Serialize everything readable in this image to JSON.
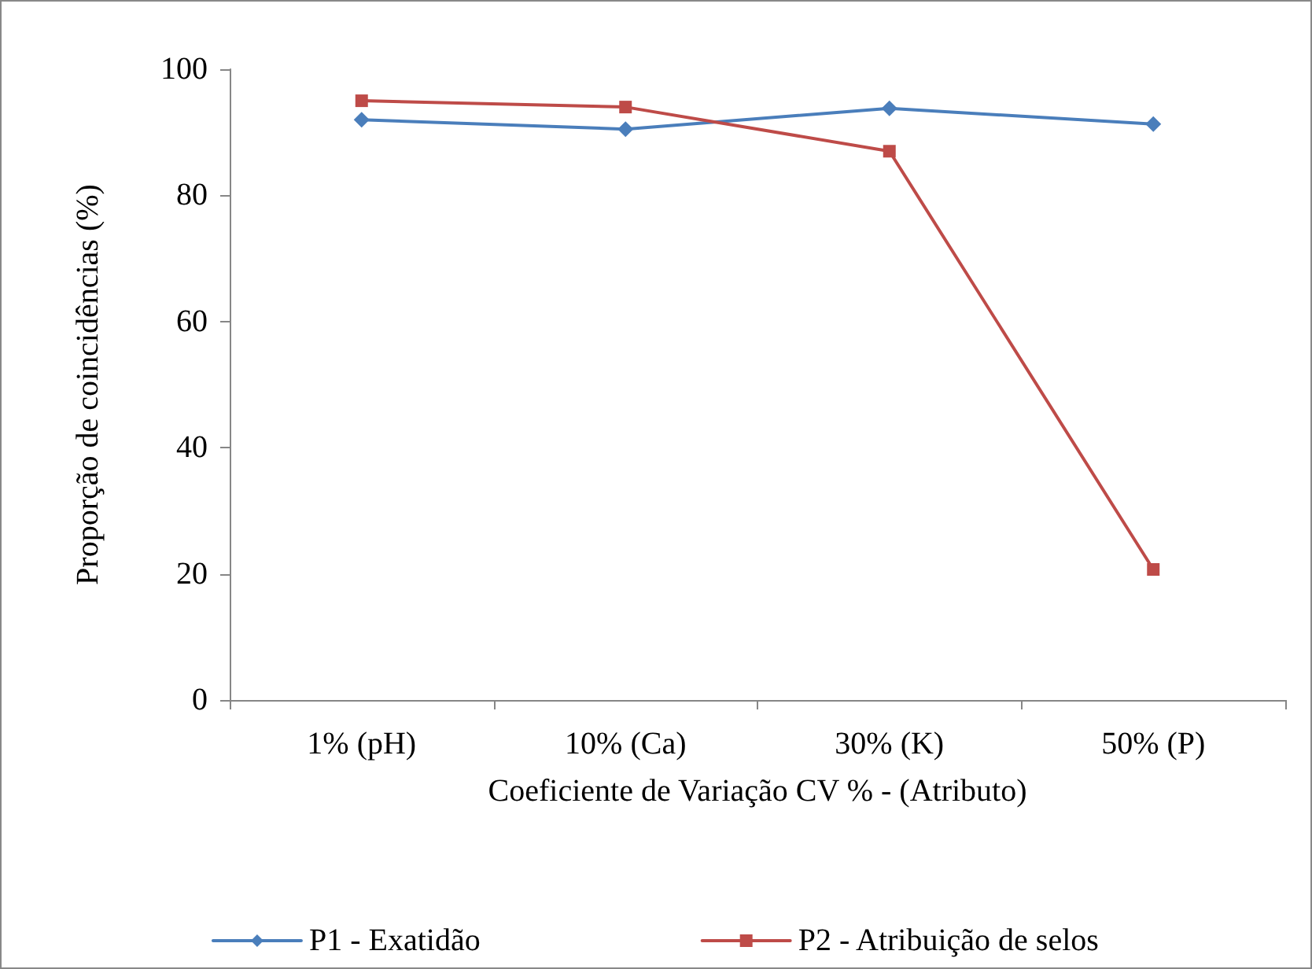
{
  "chart_data": {
    "type": "line",
    "xlabel": "Coeficiente de Variação CV % - (Atributo)",
    "ylabel": "Proporção de coincidências (%)",
    "categories": [
      "1% (pH)",
      "10% (Ca)",
      "30% (K)",
      "50% (P)"
    ],
    "series": [
      {
        "name": "P1 - Exatidão",
        "color": "#4a7ebb",
        "marker": "diamond",
        "values": [
          92.0,
          90.5,
          93.8,
          91.3
        ]
      },
      {
        "name": "P2 - Atribuição de selos",
        "color": "#be4b48",
        "marker": "square",
        "values": [
          95.0,
          94.0,
          87.0,
          20.7
        ]
      }
    ],
    "ylim": [
      0,
      100
    ],
    "yticks": [
      0,
      20,
      40,
      60,
      80,
      100
    ],
    "grid": false,
    "legend": "bottom",
    "line_style": "solid"
  }
}
